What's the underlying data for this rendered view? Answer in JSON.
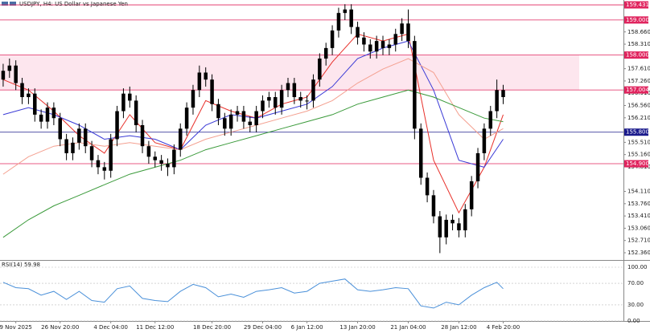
{
  "chart_data": {
    "type": "candlestick",
    "title": "USDJPY, H4:  US Dollar vs Japanese Yen",
    "xlim": [
      -0.5,
      98
    ],
    "ylim": [
      152.2,
      159.57
    ],
    "yticks": [
      {
        "value": 158.66,
        "label": "158.660"
      },
      {
        "value": 158.31,
        "label": "158.310"
      },
      {
        "value": 157.61,
        "label": "157.610"
      },
      {
        "value": 157.26,
        "label": "157.260"
      },
      {
        "value": 156.91,
        "label": "156.910"
      },
      {
        "value": 156.56,
        "label": "156.560"
      },
      {
        "value": 156.21,
        "label": "156.210"
      },
      {
        "value": 155.51,
        "label": "155.510"
      },
      {
        "value": 155.16,
        "label": "155.160"
      },
      {
        "value": 154.81,
        "label": "154.810"
      },
      {
        "value": 154.11,
        "label": "154.110"
      },
      {
        "value": 153.76,
        "label": "153.760"
      },
      {
        "value": 153.41,
        "label": "153.410"
      },
      {
        "value": 153.06,
        "label": "153.060"
      },
      {
        "value": 152.71,
        "label": "152.710"
      },
      {
        "value": 152.36,
        "label": "152.360"
      }
    ],
    "xticks": [
      {
        "value": 2,
        "label": "9 Nov 2025"
      },
      {
        "value": 9,
        "label": "26 Nov 20:00"
      },
      {
        "value": 17,
        "label": "4 Dec 04:00"
      },
      {
        "value": 24,
        "label": "11 Dec 12:00"
      },
      {
        "value": 33,
        "label": "18 Dec 20:00"
      },
      {
        "value": 41,
        "label": "29 Dec 04:00"
      },
      {
        "value": 48,
        "label": "6 Jan 12:00"
      },
      {
        "value": 56,
        "label": "13 Jan 20:00"
      },
      {
        "value": 64,
        "label": "21 Jan 04:00"
      },
      {
        "value": 72,
        "label": "28 Jan 12:00"
      },
      {
        "value": 79,
        "label": "4 Feb 20:00"
      }
    ],
    "candle_color": "#000000",
    "zone_color": "#fde6ee",
    "open": [
      157.3,
      157.55,
      157.7,
      157.2,
      156.8,
      156.9,
      156.3,
      156.1,
      156.5,
      156.2,
      155.6,
      155.2,
      155.5,
      155.9,
      155.4,
      155.0,
      154.8,
      154.7,
      155.6,
      156.4,
      156.9,
      156.7,
      156.0,
      155.4,
      155.1,
      155.0,
      154.9,
      154.8,
      155.3,
      155.9,
      156.5,
      157.0,
      157.5,
      157.3,
      156.6,
      156.2,
      155.9,
      156.3,
      156.4,
      156.1,
      156.0,
      156.4,
      156.7,
      156.8,
      156.5,
      157.0,
      157.2,
      156.8,
      156.7,
      156.7,
      157.3,
      157.9,
      158.2,
      158.7,
      159.2,
      159.3,
      158.8,
      158.5,
      158.3,
      158.1,
      158.4,
      158.2,
      158.3,
      158.6,
      158.9,
      158.4,
      155.9,
      154.5,
      154.0,
      153.4,
      152.8,
      153.3,
      153.2,
      153.0,
      153.6,
      154.4,
      155.2,
      155.9,
      156.4,
      157.0
    ],
    "high": [
      157.75,
      157.9,
      157.85,
      157.35,
      157.05,
      157.05,
      156.45,
      156.65,
      156.65,
      156.35,
      155.75,
      155.65,
      156.05,
      156.05,
      155.55,
      155.15,
      154.95,
      155.75,
      156.55,
      157.05,
      157.1,
      156.85,
      156.15,
      155.55,
      155.25,
      155.15,
      155.05,
      155.45,
      156.05,
      156.65,
      157.15,
      157.7,
      157.65,
      157.45,
      156.75,
      156.35,
      156.45,
      156.55,
      156.55,
      156.25,
      156.55,
      156.85,
      156.95,
      156.95,
      157.15,
      157.35,
      157.35,
      156.95,
      156.85,
      157.45,
      158.05,
      158.35,
      158.85,
      159.35,
      159.45,
      159.45,
      158.95,
      158.65,
      158.45,
      158.55,
      158.55,
      158.45,
      158.75,
      159.05,
      159.3,
      158.55,
      156.05,
      154.65,
      154.15,
      153.55,
      153.45,
      153.45,
      153.35,
      153.75,
      154.55,
      155.35,
      156.05,
      156.55,
      157.3,
      157.15
    ],
    "low": [
      157.1,
      157.35,
      157.0,
      156.6,
      156.6,
      156.1,
      155.9,
      155.9,
      156.0,
      155.4,
      155.0,
      155.0,
      155.3,
      155.2,
      154.8,
      154.6,
      154.45,
      154.5,
      155.4,
      156.2,
      156.5,
      155.8,
      155.2,
      154.9,
      154.8,
      154.7,
      154.55,
      154.6,
      155.1,
      155.7,
      156.3,
      156.8,
      157.1,
      156.4,
      156.0,
      155.7,
      155.7,
      156.1,
      155.9,
      155.8,
      155.8,
      156.2,
      156.5,
      156.3,
      156.3,
      156.8,
      156.6,
      156.5,
      156.45,
      156.5,
      157.1,
      157.7,
      158.0,
      158.5,
      159.0,
      158.6,
      158.3,
      158.1,
      157.9,
      157.9,
      158.0,
      158.0,
      158.1,
      158.4,
      158.2,
      155.6,
      154.3,
      153.8,
      153.2,
      152.35,
      152.6,
      153.0,
      152.8,
      152.8,
      153.4,
      154.2,
      155.0,
      155.7,
      156.2,
      156.6
    ],
    "close": [
      157.55,
      157.7,
      157.2,
      156.8,
      156.9,
      156.3,
      156.1,
      156.5,
      156.2,
      155.6,
      155.2,
      155.5,
      155.9,
      155.4,
      155.0,
      154.8,
      154.7,
      155.6,
      156.4,
      156.9,
      156.7,
      156.0,
      155.4,
      155.1,
      155.0,
      154.9,
      154.8,
      155.3,
      155.9,
      156.5,
      157.0,
      157.5,
      157.3,
      156.6,
      156.2,
      155.9,
      156.3,
      156.4,
      156.1,
      156.0,
      156.4,
      156.7,
      156.8,
      156.5,
      157.0,
      157.2,
      156.8,
      156.7,
      156.7,
      157.3,
      157.9,
      158.2,
      158.7,
      159.2,
      159.3,
      158.8,
      158.5,
      158.3,
      158.1,
      158.4,
      158.2,
      158.3,
      158.6,
      158.9,
      158.4,
      155.9,
      154.5,
      154.0,
      153.4,
      152.8,
      153.3,
      153.2,
      153.0,
      153.6,
      154.4,
      155.2,
      155.9,
      156.4,
      157.0,
      156.8
    ],
    "levels": [
      {
        "value": 159.431,
        "label": "159.431",
        "color": "#e0245e"
      },
      {
        "value": 159.0,
        "label": "159.000",
        "color": "#e0245e"
      },
      {
        "value": 158.0,
        "label": "158.000",
        "color": "#e0245e"
      },
      {
        "value": 157.004,
        "label": "157.004",
        "color": "#e0245e"
      },
      {
        "value": 155.8,
        "label": "155.800",
        "color": "#1a1a8c"
      },
      {
        "value": 154.9,
        "label": "154.900",
        "color": "#e0245e"
      }
    ],
    "series": [
      {
        "color": "#e8302a",
        "x": [
          0,
          4,
          8,
          12,
          16,
          20,
          24,
          28,
          32,
          36,
          40,
          44,
          48,
          52,
          56,
          60,
          64,
          68,
          72,
          76,
          79
        ],
        "values": [
          157.3,
          157.0,
          156.4,
          155.7,
          155.2,
          156.3,
          155.5,
          155.3,
          156.7,
          156.4,
          156.2,
          156.6,
          156.8,
          157.8,
          158.6,
          158.4,
          158.6,
          155.0,
          153.5,
          154.8,
          156.3
        ]
      },
      {
        "color": "#3a3ad6",
        "x": [
          0,
          4,
          8,
          12,
          16,
          20,
          24,
          28,
          32,
          36,
          40,
          44,
          48,
          52,
          56,
          60,
          64,
          68,
          72,
          76,
          79
        ],
        "values": [
          156.3,
          156.5,
          156.3,
          156.0,
          155.6,
          155.7,
          155.6,
          155.3,
          156.0,
          156.3,
          156.2,
          156.4,
          156.6,
          157.1,
          157.9,
          158.2,
          158.4,
          157.0,
          155.0,
          154.8,
          155.6
        ]
      },
      {
        "color": "#f4a090",
        "x": [
          0,
          4,
          8,
          12,
          16,
          20,
          24,
          28,
          32,
          36,
          40,
          44,
          48,
          52,
          56,
          60,
          64,
          68,
          72,
          76,
          79
        ],
        "values": [
          154.6,
          155.1,
          155.4,
          155.5,
          155.4,
          155.5,
          155.4,
          155.3,
          155.6,
          155.8,
          156.0,
          156.2,
          156.4,
          156.7,
          157.2,
          157.6,
          157.9,
          157.5,
          156.3,
          155.6,
          155.9
        ]
      },
      {
        "color": "#3a9a3a",
        "x": [
          0,
          4,
          8,
          12,
          16,
          20,
          24,
          28,
          32,
          36,
          40,
          44,
          48,
          52,
          56,
          60,
          64,
          68,
          72,
          76,
          79
        ],
        "values": [
          152.8,
          153.3,
          153.7,
          154.0,
          154.3,
          154.6,
          154.8,
          155.0,
          155.3,
          155.5,
          155.7,
          155.9,
          156.1,
          156.3,
          156.6,
          156.8,
          157.0,
          156.8,
          156.5,
          156.2,
          156.1
        ]
      }
    ],
    "rsi": {
      "label": "RSI(14) 59.98",
      "color": "#4a90d9",
      "ylim": [
        0,
        100
      ],
      "yticks": [
        {
          "value": 100,
          "label": "100.00"
        },
        {
          "value": 70,
          "label": "70.00"
        },
        {
          "value": 30,
          "label": "30.00"
        },
        {
          "value": 0,
          "label": "0.00"
        }
      ],
      "x": [
        0,
        2,
        4,
        6,
        8,
        10,
        12,
        14,
        16,
        18,
        20,
        22,
        24,
        26,
        28,
        30,
        32,
        34,
        36,
        38,
        40,
        42,
        44,
        46,
        48,
        50,
        52,
        54,
        56,
        58,
        60,
        62,
        64,
        66,
        68,
        70,
        72,
        74,
        76,
        78,
        79
      ],
      "values": [
        72,
        62,
        60,
        48,
        55,
        40,
        55,
        38,
        35,
        60,
        65,
        42,
        38,
        36,
        55,
        68,
        62,
        45,
        50,
        44,
        55,
        58,
        62,
        52,
        55,
        70,
        74,
        78,
        58,
        55,
        58,
        62,
        60,
        28,
        24,
        35,
        30,
        48,
        62,
        72,
        60
      ]
    }
  }
}
